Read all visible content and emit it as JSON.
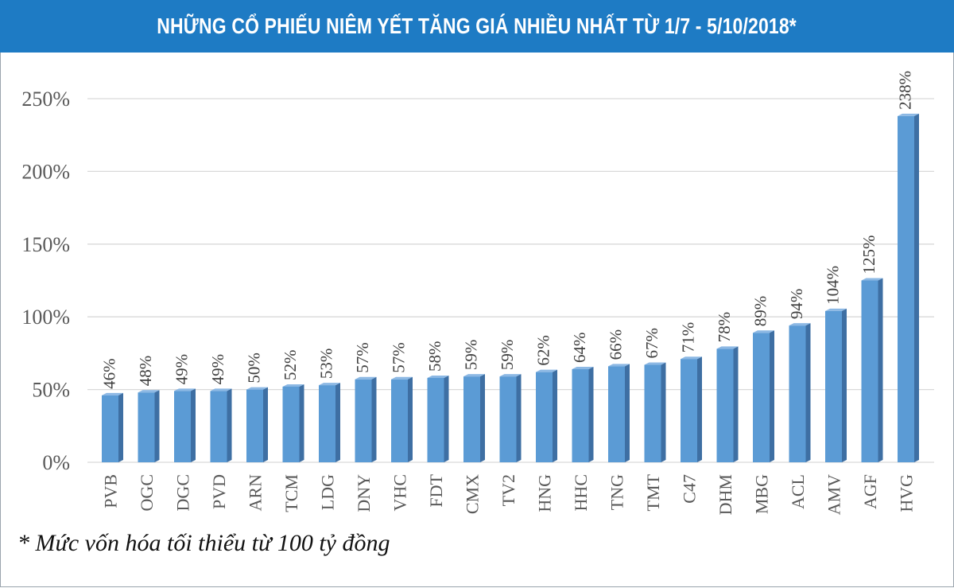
{
  "header": {
    "title": "NHỮNG CỔ PHIẾU NIÊM YẾT TĂNG GIÁ NHIỀU NHẤT TỪ 1/7 - 5/10/2018*"
  },
  "footnote": "* Mức vốn hóa tối thiểu từ 100 tỷ đồng",
  "colors": {
    "header_bg": "#1e7bc4",
    "bar_front": "#5b9bd5",
    "bar_side": "#3e6fa3",
    "bar_top": "#8cb8e4",
    "grid": "#d9d9d9",
    "axis_text": "#595959"
  },
  "chart_data": {
    "type": "bar",
    "title": "NHỮNG CỔ PHIẾU NIÊM YẾT TĂNG GIÁ NHIỀU NHẤT TỪ 1/7 - 5/10/2018*",
    "xlabel": "",
    "ylabel": "",
    "categories": [
      "PVB",
      "OGC",
      "DGC",
      "PVD",
      "ARN",
      "TCM",
      "LDG",
      "DNY",
      "VHC",
      "FDT",
      "CMX",
      "TV2",
      "HNG",
      "HHC",
      "TNG",
      "TMT",
      "C47",
      "DHM",
      "MBG",
      "ACL",
      "AMV",
      "AGF",
      "HVG"
    ],
    "values": [
      46,
      48,
      49,
      49,
      50,
      52,
      53,
      57,
      57,
      58,
      59,
      59,
      62,
      64,
      66,
      67,
      71,
      78,
      89,
      94,
      104,
      125,
      238
    ],
    "data_labels": [
      "46%",
      "48%",
      "49%",
      "49%",
      "50%",
      "52%",
      "53%",
      "57%",
      "57%",
      "58%",
      "59%",
      "59%",
      "62%",
      "64%",
      "66%",
      "67%",
      "71%",
      "78%",
      "89%",
      "94%",
      "104%",
      "125%",
      "238%"
    ],
    "ylim": [
      0,
      250
    ],
    "yticks": [
      0,
      50,
      100,
      150,
      200,
      250
    ],
    "ytick_labels": [
      "0%",
      "50%",
      "100%",
      "150%",
      "200%",
      "250%"
    ],
    "grid": true,
    "legend": "none",
    "style": "3d-bar"
  }
}
